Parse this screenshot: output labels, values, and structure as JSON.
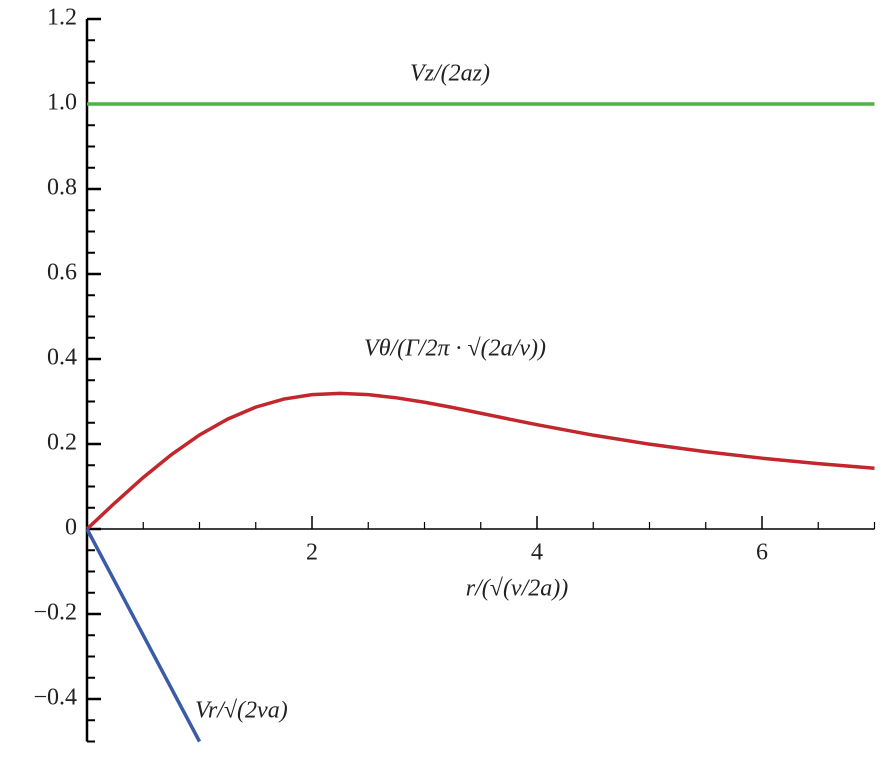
{
  "chart_data": {
    "type": "line",
    "x_label": "r/(√(ν/2a))",
    "xlim": [
      0,
      7
    ],
    "xticks": [
      2,
      4,
      6
    ],
    "ylim": [
      -0.5,
      1.2
    ],
    "yticks": [
      {
        "value": -0.4,
        "label": "−0.4"
      },
      {
        "value": -0.2,
        "label": "−0.2"
      },
      0,
      0.2,
      0.4,
      0.6,
      0.8,
      {
        "value": 1.0,
        "label": "1.0"
      },
      1.2
    ],
    "grid": false,
    "series": [
      {
        "name": "Vz/(2az)",
        "color": "#4db345",
        "x": [
          0,
          7
        ],
        "values": [
          1,
          1
        ]
      },
      {
        "name": "Vθ/(Γ/2π · √(2a/ν))",
        "color": "#c1272d",
        "x": [
          0,
          0.25,
          0.5,
          0.75,
          1,
          1.25,
          1.5,
          1.75,
          2,
          2.25,
          2.5,
          2.75,
          3,
          3.25,
          3.5,
          3.75,
          4,
          4.5,
          5,
          5.5,
          6,
          6.5,
          7
        ],
        "values": [
          0,
          0.062,
          0.1212,
          0.1749,
          0.2212,
          0.2586,
          0.2868,
          0.3057,
          0.3161,
          0.3191,
          0.3161,
          0.3087,
          0.2982,
          0.2858,
          0.2723,
          0.2587,
          0.2454,
          0.2208,
          0.1996,
          0.1817,
          0.1666,
          0.1538,
          0.1429
        ]
      },
      {
        "name": "Vr/√(2νa)",
        "color": "#3a5ba8",
        "x": [
          0,
          1
        ],
        "values": [
          0,
          -0.5
        ]
      }
    ]
  }
}
